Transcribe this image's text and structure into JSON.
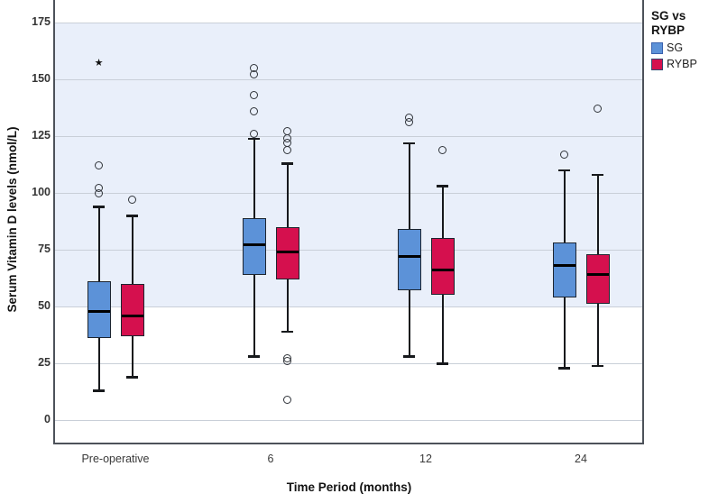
{
  "figure": {
    "y_axis_title": "Serum Vitamin D levels (nmol/L)",
    "x_axis_title": "Time Period (months)",
    "legend": {
      "title": "SG vs\nRYBP",
      "entries": [
        {
          "label": "SG",
          "fill": "#5c92d8",
          "border": "#3a62ae"
        },
        {
          "label": "RYBP",
          "fill": "#d5104e",
          "border": "#334972"
        }
      ]
    }
  },
  "chart_data": {
    "type": "boxplot",
    "title": "",
    "xlabel": "Time Period (months)",
    "ylabel": "Serum Vitamin D levels (nmol/L)",
    "categories": [
      "Pre-operative",
      "6",
      "12",
      "24"
    ],
    "y_ticks": [
      0,
      25,
      50,
      75,
      100,
      125,
      150,
      175
    ],
    "ylim": [
      -11,
      182
    ],
    "grid": "horizontal",
    "legend_position": "top-right",
    "reference_band": {
      "from": 50,
      "to": 175,
      "color": "#e9effa"
    },
    "colors": {
      "gridline": "#c9cfd8",
      "frame": "#4d525a",
      "box_border": "#1d2530",
      "median": "#000000"
    },
    "series": [
      {
        "name": "SG",
        "color": "#5c92d8",
        "boxes": [
          {
            "category": "Pre-operative",
            "whisker_low": 13,
            "q1": 36,
            "median": 48,
            "q3": 61,
            "whisker_high": 94,
            "outliers": [
              100,
              102,
              112
            ],
            "extremes": [
              157
            ]
          },
          {
            "category": "6",
            "whisker_low": 28,
            "q1": 64,
            "median": 77,
            "q3": 89,
            "whisker_high": 124,
            "outliers": [
              126,
              136,
              143,
              152,
              155
            ],
            "extremes": []
          },
          {
            "category": "12",
            "whisker_low": 28,
            "q1": 57,
            "median": 72,
            "q3": 84,
            "whisker_high": 122,
            "outliers": [
              131,
              133
            ],
            "extremes": []
          },
          {
            "category": "24",
            "whisker_low": 23,
            "q1": 54,
            "median": 68,
            "q3": 78,
            "whisker_high": 110,
            "outliers": [
              117
            ],
            "extremes": []
          }
        ]
      },
      {
        "name": "RYBP",
        "color": "#d5104e",
        "boxes": [
          {
            "category": "Pre-operative",
            "whisker_low": 19,
            "q1": 37,
            "median": 46,
            "q3": 60,
            "whisker_high": 90,
            "outliers": [
              97
            ],
            "extremes": []
          },
          {
            "category": "6",
            "whisker_low": 39,
            "q1": 62,
            "median": 74,
            "q3": 85,
            "whisker_high": 113,
            "outliers": [
              9,
              26,
              27,
              119,
              122,
              124,
              127
            ],
            "extremes": []
          },
          {
            "category": "12",
            "whisker_low": 25,
            "q1": 55,
            "median": 66,
            "q3": 80,
            "whisker_high": 103,
            "outliers": [
              119
            ],
            "extremes": []
          },
          {
            "category": "24",
            "whisker_low": 24,
            "q1": 51,
            "median": 64,
            "q3": 73,
            "whisker_high": 108,
            "outliers": [
              137
            ],
            "extremes": []
          }
        ]
      }
    ]
  }
}
